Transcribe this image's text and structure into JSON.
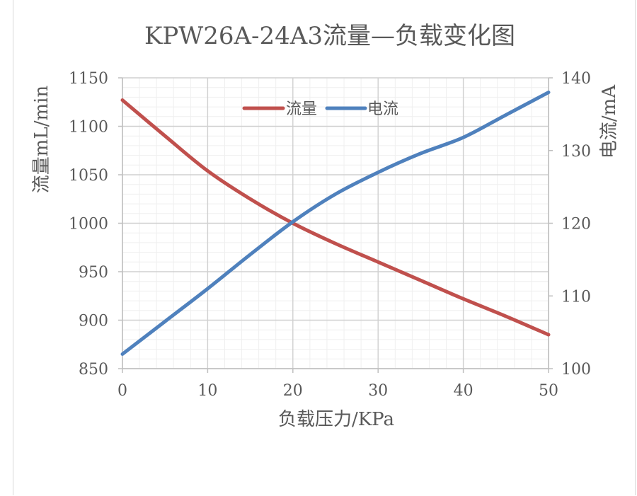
{
  "chart_data": {
    "type": "line",
    "title": "KPW26A-24A3流量—负载变化图",
    "xlabel": "负载压力/KPa",
    "ylabel_left": "流量mL/min",
    "ylabel_right": "电流/mA",
    "x_ticks": [
      "0",
      "10",
      "20",
      "30",
      "40",
      "50"
    ],
    "y_left_ticks": [
      "850",
      "900",
      "950",
      "1000",
      "1050",
      "1100",
      "1150"
    ],
    "y_right_ticks": [
      "100",
      "110",
      "120",
      "130",
      "140"
    ],
    "xlim": [
      0,
      50
    ],
    "ylim_left": [
      850,
      1150
    ],
    "ylim_right": [
      100,
      140
    ],
    "grid": true,
    "legend_position": "top-center",
    "series": [
      {
        "name": "流量",
        "axis": "left",
        "color": "#c0504d",
        "x": [
          0,
          5,
          10,
          15,
          20,
          25,
          30,
          35,
          40,
          45,
          50
        ],
        "y": [
          1127,
          1090,
          1054,
          1025,
          1000,
          979,
          960,
          941,
          922,
          904,
          885
        ]
      },
      {
        "name": "电流",
        "axis": "right",
        "color": "#4f81bd",
        "x": [
          0,
          5,
          10,
          15,
          20,
          25,
          30,
          35,
          40,
          45,
          50
        ],
        "y": [
          102,
          106.5,
          111,
          115.7,
          120.2,
          124,
          127,
          129.6,
          131.8,
          134.9,
          138
        ]
      }
    ]
  }
}
